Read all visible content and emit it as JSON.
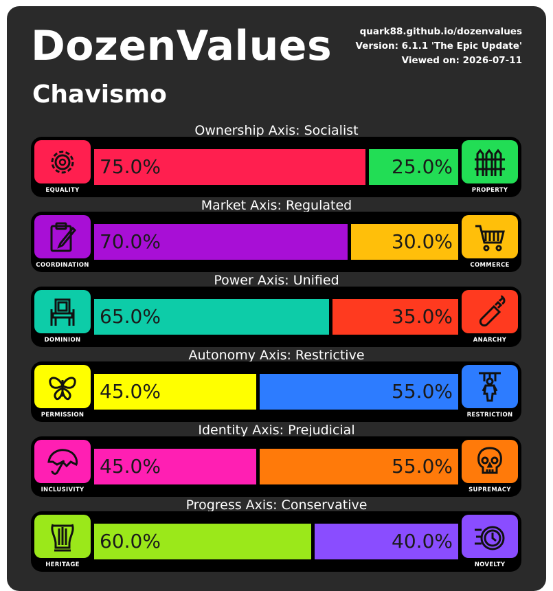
{
  "header": {
    "title": "DozenValues",
    "subtitle": "Chavismo",
    "site": "quark88.github.io/dozenvalues",
    "version": "Version: 6.1.1 'The Epic Update'",
    "viewed": "Viewed on: 2026-07-11"
  },
  "axes": [
    {
      "id": "ownership",
      "title": "Ownership Axis: Socialist",
      "left": {
        "label": "EQUALITY",
        "icon": "gear-icon",
        "color": "#ff1f4f",
        "pct": 75.0,
        "pct_text": "75.0%"
      },
      "right": {
        "label": "PROPERTY",
        "icon": "fence-icon",
        "color": "#22dd55",
        "pct": 25.0,
        "pct_text": "25.0%"
      }
    },
    {
      "id": "market",
      "title": "Market Axis: Regulated",
      "left": {
        "label": "COORDINATION",
        "icon": "clipboard-icon",
        "color": "#a80fd6",
        "pct": 70.0,
        "pct_text": "70.0%"
      },
      "right": {
        "label": "COMMERCE",
        "icon": "cart-icon",
        "color": "#ffbf0a",
        "pct": 30.0,
        "pct_text": "30.0%"
      }
    },
    {
      "id": "power",
      "title": "Power Axis: Unified",
      "left": {
        "label": "DOMINION",
        "icon": "throne-icon",
        "color": "#0dcca8",
        "pct": 65.0,
        "pct_text": "65.0%"
      },
      "right": {
        "label": "ANARCHY",
        "icon": "molotov-icon",
        "color": "#ff3a1f",
        "pct": 35.0,
        "pct_text": "35.0%"
      }
    },
    {
      "id": "autonomy",
      "title": "Autonomy Axis: Restrictive",
      "left": {
        "label": "PERMISSION",
        "icon": "butterfly-icon",
        "color": "#ffff00",
        "pct": 45.0,
        "pct_text": "45.0%"
      },
      "right": {
        "label": "RESTRICTION",
        "icon": "puppet-icon",
        "color": "#2d7cff",
        "pct": 55.0,
        "pct_text": "55.0%"
      }
    },
    {
      "id": "identity",
      "title": "Identity Axis: Prejudicial",
      "left": {
        "label": "INCLUSIVITY",
        "icon": "umbrella-icon",
        "color": "#ff1fb3",
        "pct": 45.0,
        "pct_text": "45.0%"
      },
      "right": {
        "label": "SUPREMACY",
        "icon": "skull-icon",
        "color": "#ff7a0a",
        "pct": 55.0,
        "pct_text": "55.0%"
      }
    },
    {
      "id": "progress",
      "title": "Progress Axis: Conservative",
      "left": {
        "label": "HERITAGE",
        "icon": "lyre-icon",
        "color": "#9be81a",
        "pct": 60.0,
        "pct_text": "60.0%"
      },
      "right": {
        "label": "NOVELTY",
        "icon": "clock-icon",
        "color": "#8a4dff",
        "pct": 40.0,
        "pct_text": "40.0%"
      }
    }
  ]
}
